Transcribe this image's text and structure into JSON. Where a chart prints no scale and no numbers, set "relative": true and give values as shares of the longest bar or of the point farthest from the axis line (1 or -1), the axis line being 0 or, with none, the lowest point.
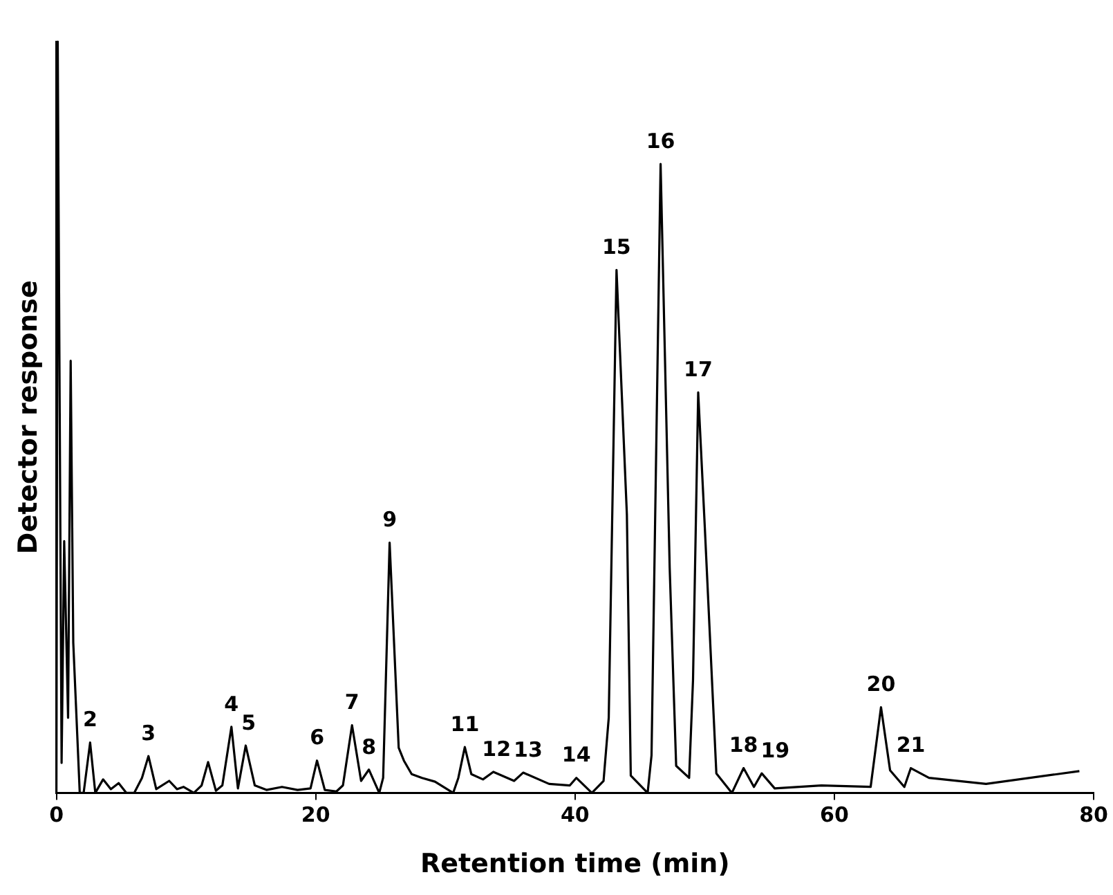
{
  "chart_data": {
    "type": "line",
    "relative": true,
    "xlabel": "Retention time (min)",
    "ylabel": "Detector response",
    "xlim": [
      0,
      80
    ],
    "xticks": [
      0,
      20,
      40,
      60,
      80
    ],
    "grid": false,
    "legend": false,
    "marker": "none",
    "line_style": "solid",
    "series": [
      {
        "color": "#000000",
        "x": [
          0,
          0.1,
          0.4,
          0.6,
          0.9,
          1.1,
          1.3,
          1.8,
          2.1,
          2.6,
          3.0,
          3.6,
          4.2,
          4.8,
          5.4,
          6.0,
          6.6,
          7.1,
          7.7,
          8.7,
          9.3,
          9.8,
          10.6,
          11.2,
          11.7,
          12.3,
          12.8,
          13.5,
          14.0,
          14.6,
          15.3,
          16.2,
          17.4,
          18.6,
          19.6,
          20.1,
          20.7,
          21.6,
          22.1,
          22.8,
          23.5,
          24.1,
          24.9,
          25.2,
          25.7,
          26.4,
          26.8,
          27.4,
          28.2,
          29.2,
          30.6,
          31.0,
          31.5,
          32.0,
          32.9,
          33.7,
          35.3,
          36.0,
          38.0,
          39.6,
          40.1,
          41.3,
          42.2,
          42.6,
          43.2,
          44.0,
          44.3,
          45.6,
          45.9,
          46.6,
          47.3,
          47.8,
          48.8,
          49.1,
          49.5,
          50.0,
          50.9,
          52.1,
          53.0,
          53.8,
          54.4,
          55.4,
          59.0,
          62.8,
          63.6,
          64.3,
          65.4,
          65.9,
          67.3,
          71.7,
          78.9
        ],
        "values": [
          0,
          1.0,
          0.04,
          0.335,
          0.1,
          0.575,
          0.2,
          0.0,
          0.0,
          0.067,
          0.0,
          0.018,
          0.005,
          0.013,
          0.0,
          0.0,
          0.02,
          0.049,
          0.005,
          0.016,
          0.005,
          0.008,
          0.0,
          0.01,
          0.041,
          0.003,
          0.01,
          0.088,
          0.006,
          0.063,
          0.01,
          0.004,
          0.008,
          0.004,
          0.006,
          0.043,
          0.004,
          0.002,
          0.01,
          0.09,
          0.016,
          0.031,
          0.0,
          0.02,
          0.333,
          0.06,
          0.043,
          0.025,
          0.02,
          0.015,
          0.0,
          0.02,
          0.061,
          0.025,
          0.018,
          0.028,
          0.016,
          0.027,
          0.012,
          0.01,
          0.02,
          0.0,
          0.016,
          0.1,
          0.696,
          0.37,
          0.023,
          0.0,
          0.05,
          0.837,
          0.3,
          0.036,
          0.02,
          0.15,
          0.533,
          0.357,
          0.026,
          0.0,
          0.033,
          0.008,
          0.026,
          0.006,
          0.01,
          0.008,
          0.114,
          0.03,
          0.008,
          0.033,
          0.02,
          0.012,
          0.029
        ]
      }
    ],
    "annotations": [
      {
        "text": "2",
        "x": 2.6,
        "y": 0.067
      },
      {
        "text": "3",
        "x": 7.1,
        "y": 0.049
      },
      {
        "text": "4",
        "x": 13.5,
        "y": 0.088
      },
      {
        "text": "5",
        "x": 14.6,
        "y": 0.063
      },
      {
        "text": "6",
        "x": 20.1,
        "y": 0.043
      },
      {
        "text": "7",
        "x": 22.8,
        "y": 0.09
      },
      {
        "text": "8",
        "x": 24.1,
        "y": 0.031
      },
      {
        "text": "9",
        "x": 25.7,
        "y": 0.333
      },
      {
        "text": "11",
        "x": 31.5,
        "y": 0.061
      },
      {
        "text": "12",
        "x": 33.7,
        "y": 0.028
      },
      {
        "text": "13",
        "x": 36.0,
        "y": 0.027
      },
      {
        "text": "14",
        "x": 40.1,
        "y": 0.02
      },
      {
        "text": "15",
        "x": 43.2,
        "y": 0.696
      },
      {
        "text": "16",
        "x": 46.6,
        "y": 0.837
      },
      {
        "text": "17",
        "x": 49.5,
        "y": 0.533
      },
      {
        "text": "18",
        "x": 53.0,
        "y": 0.033
      },
      {
        "text": "19",
        "x": 54.4,
        "y": 0.026
      },
      {
        "text": "20",
        "x": 63.6,
        "y": 0.114
      },
      {
        "text": "21",
        "x": 65.9,
        "y": 0.033
      }
    ]
  }
}
